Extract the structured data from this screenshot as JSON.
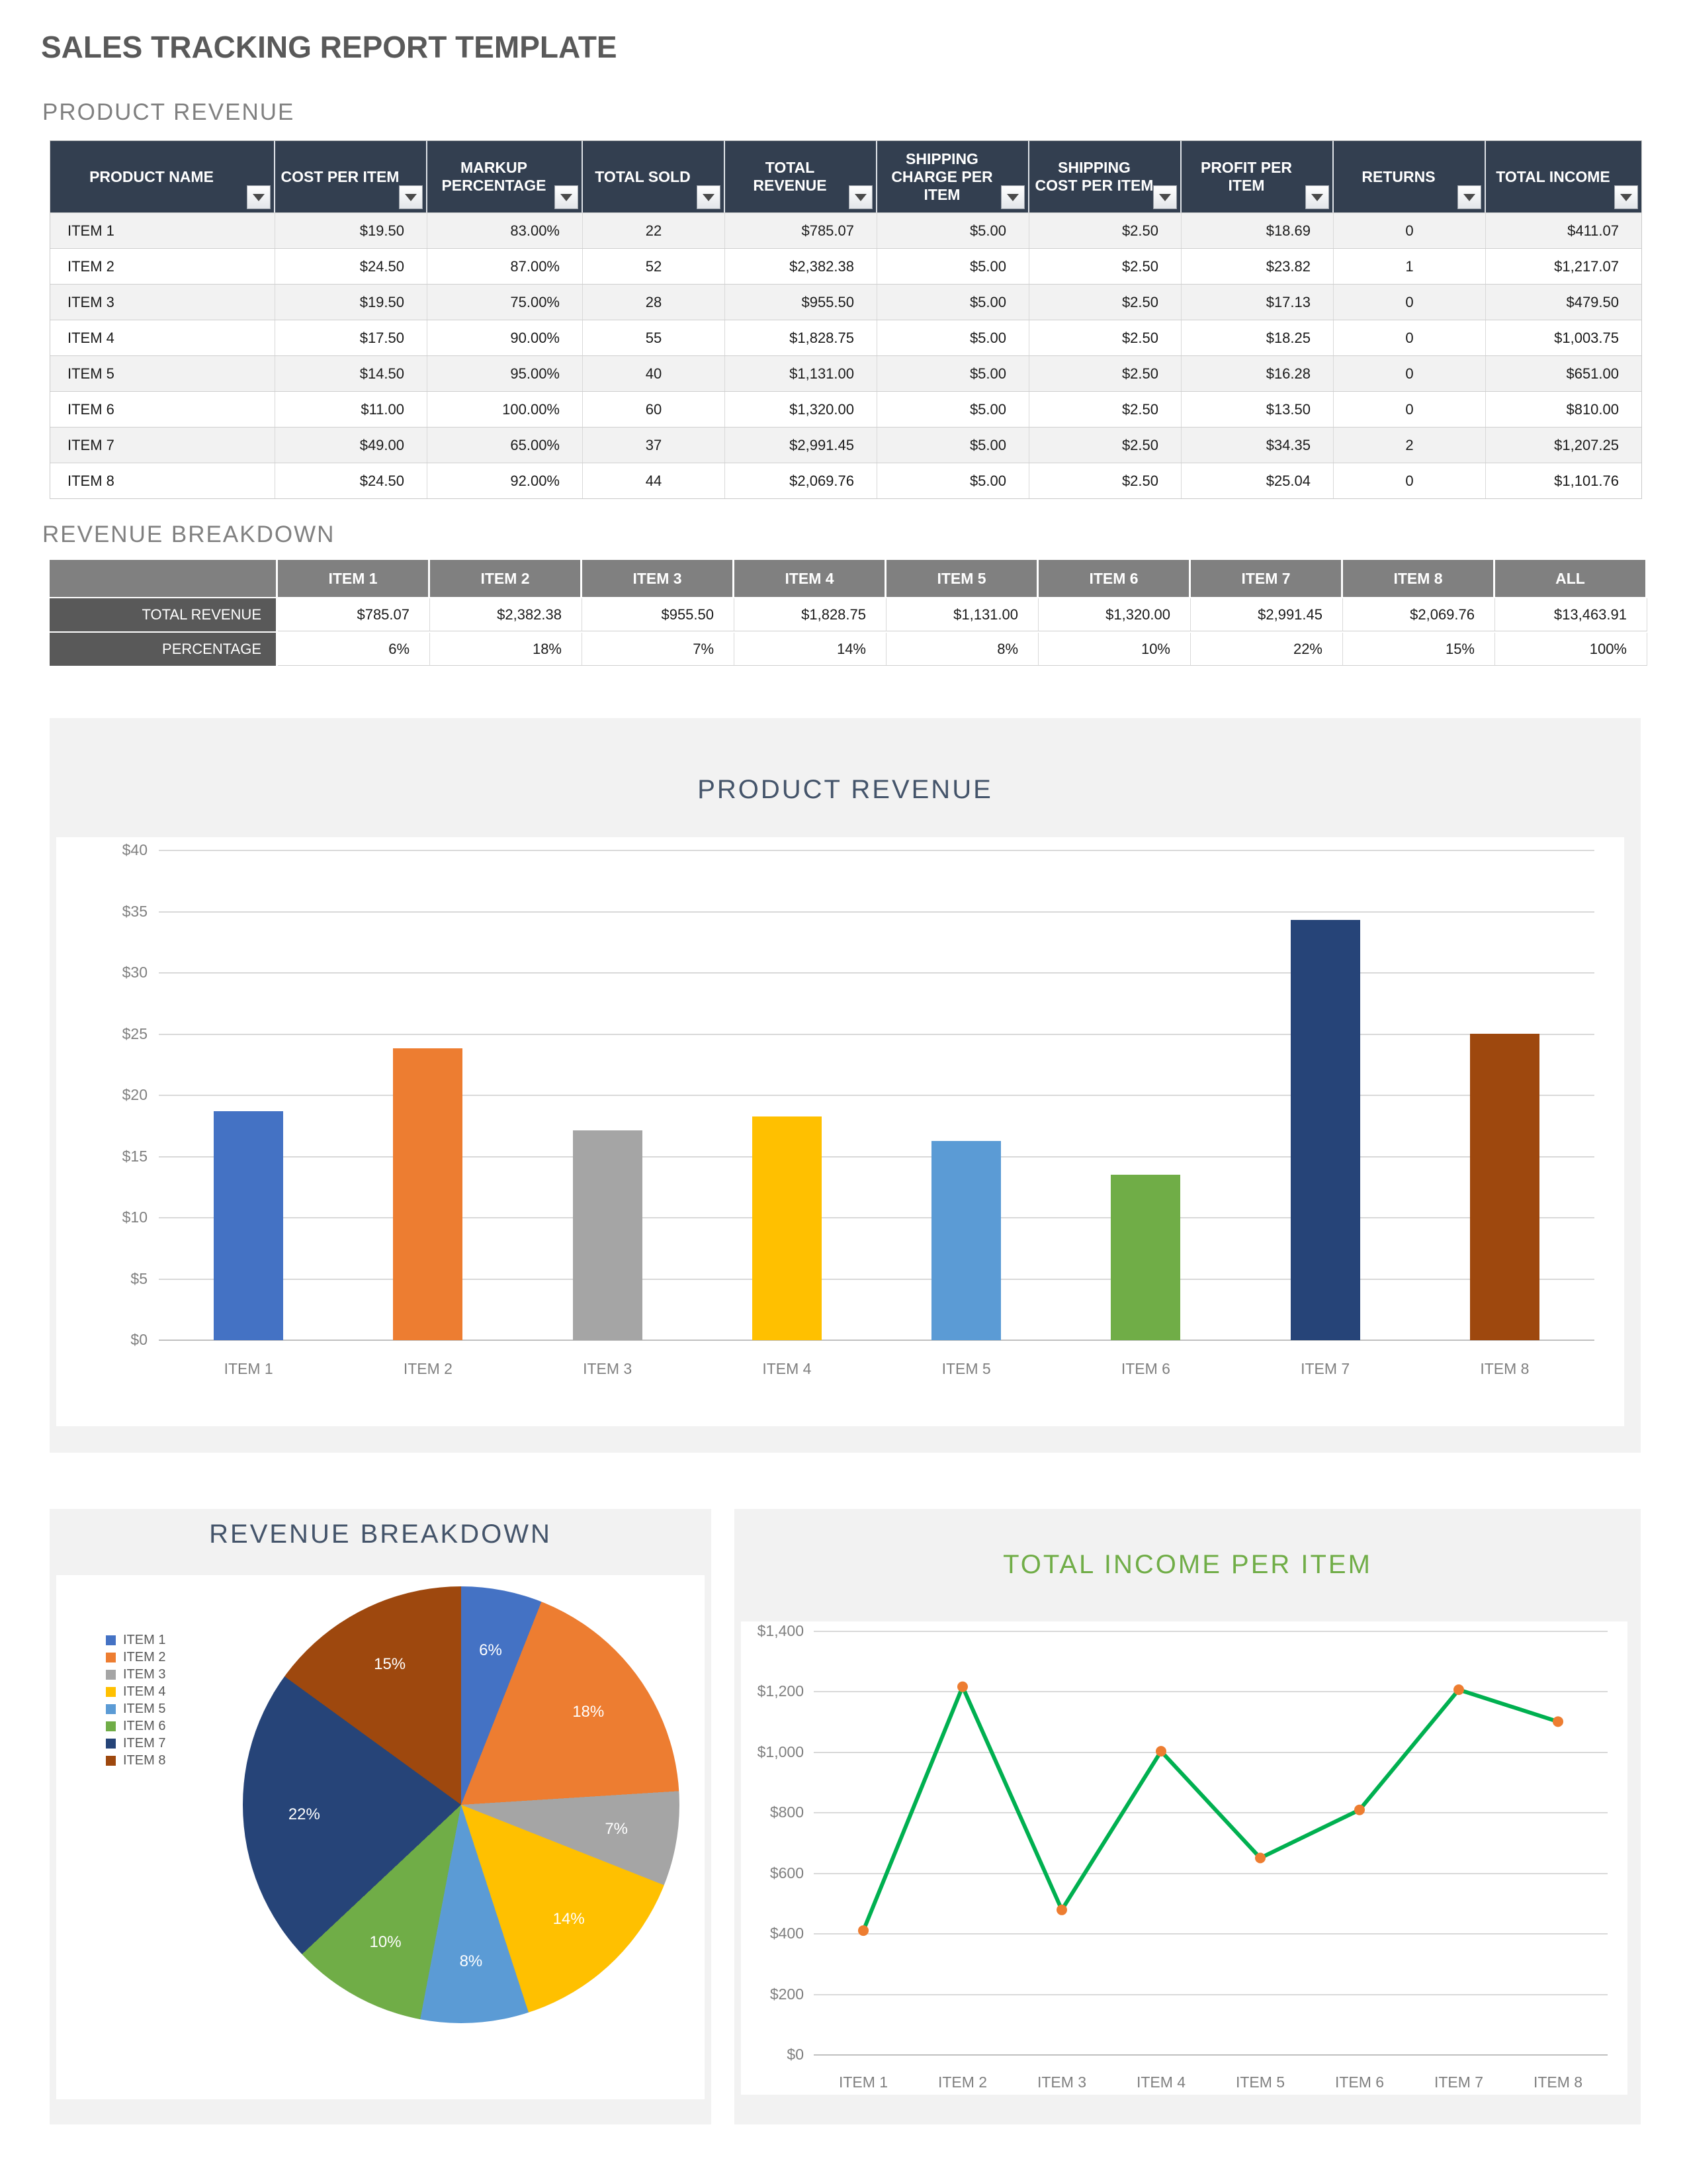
{
  "page": {
    "title": "SALES TRACKING REPORT TEMPLATE"
  },
  "sections": {
    "product_revenue_label": "PRODUCT REVENUE",
    "revenue_breakdown_label": "REVENUE BREAKDOWN"
  },
  "product_table": {
    "headers": [
      "PRODUCT NAME",
      "COST PER ITEM",
      "MARKUP PERCENTAGE",
      "TOTAL SOLD",
      "TOTAL REVENUE",
      "SHIPPING CHARGE PER ITEM",
      "SHIPPING COST PER ITEM",
      "PROFIT PER ITEM",
      "RETURNS",
      "TOTAL INCOME"
    ],
    "rows": [
      {
        "name": "ITEM 1",
        "cost": "$19.50",
        "markup": "83.00%",
        "sold": "22",
        "revenue": "$785.07",
        "ship_charge": "$5.00",
        "ship_cost": "$2.50",
        "profit": "$18.69",
        "returns": "0",
        "income": "$411.07"
      },
      {
        "name": "ITEM 2",
        "cost": "$24.50",
        "markup": "87.00%",
        "sold": "52",
        "revenue": "$2,382.38",
        "ship_charge": "$5.00",
        "ship_cost": "$2.50",
        "profit": "$23.82",
        "returns": "1",
        "income": "$1,217.07"
      },
      {
        "name": "ITEM 3",
        "cost": "$19.50",
        "markup": "75.00%",
        "sold": "28",
        "revenue": "$955.50",
        "ship_charge": "$5.00",
        "ship_cost": "$2.50",
        "profit": "$17.13",
        "returns": "0",
        "income": "$479.50"
      },
      {
        "name": "ITEM 4",
        "cost": "$17.50",
        "markup": "90.00%",
        "sold": "55",
        "revenue": "$1,828.75",
        "ship_charge": "$5.00",
        "ship_cost": "$2.50",
        "profit": "$18.25",
        "returns": "0",
        "income": "$1,003.75"
      },
      {
        "name": "ITEM 5",
        "cost": "$14.50",
        "markup": "95.00%",
        "sold": "40",
        "revenue": "$1,131.00",
        "ship_charge": "$5.00",
        "ship_cost": "$2.50",
        "profit": "$16.28",
        "returns": "0",
        "income": "$651.00"
      },
      {
        "name": "ITEM 6",
        "cost": "$11.00",
        "markup": "100.00%",
        "sold": "60",
        "revenue": "$1,320.00",
        "ship_charge": "$5.00",
        "ship_cost": "$2.50",
        "profit": "$13.50",
        "returns": "0",
        "income": "$810.00"
      },
      {
        "name": "ITEM 7",
        "cost": "$49.00",
        "markup": "65.00%",
        "sold": "37",
        "revenue": "$2,991.45",
        "ship_charge": "$5.00",
        "ship_cost": "$2.50",
        "profit": "$34.35",
        "returns": "2",
        "income": "$1,207.25"
      },
      {
        "name": "ITEM 8",
        "cost": "$24.50",
        "markup": "92.00%",
        "sold": "44",
        "revenue": "$2,069.76",
        "ship_charge": "$5.00",
        "ship_cost": "$2.50",
        "profit": "$25.04",
        "returns": "0",
        "income": "$1,101.76"
      }
    ]
  },
  "breakdown_table": {
    "columns": [
      "ITEM 1",
      "ITEM 2",
      "ITEM 3",
      "ITEM 4",
      "ITEM 5",
      "ITEM 6",
      "ITEM 7",
      "ITEM 8",
      "ALL"
    ],
    "rows": [
      {
        "label": "TOTAL REVENUE",
        "values": [
          "$785.07",
          "$2,382.38",
          "$955.50",
          "$1,828.75",
          "$1,131.00",
          "$1,320.00",
          "$2,991.45",
          "$2,069.76",
          "$13,463.91"
        ]
      },
      {
        "label": "PERCENTAGE",
        "values": [
          "6%",
          "18%",
          "7%",
          "14%",
          "8%",
          "10%",
          "22%",
          "15%",
          "100%"
        ]
      }
    ]
  },
  "chart_data": [
    {
      "type": "bar",
      "title": "PRODUCT REVENUE",
      "categories": [
        "ITEM 1",
        "ITEM 2",
        "ITEM 3",
        "ITEM 4",
        "ITEM 5",
        "ITEM 6",
        "ITEM 7",
        "ITEM 8"
      ],
      "values": [
        18.69,
        23.82,
        17.13,
        18.25,
        16.28,
        13.5,
        34.35,
        25.04
      ],
      "ylabel": "",
      "xlabel": "",
      "ylim": [
        0,
        40
      ],
      "ytick_step": 5,
      "tick_format": "$",
      "grid": true,
      "legend_position": "none",
      "colors": [
        "#4472C4",
        "#ED7D31",
        "#A5A5A5",
        "#FFC000",
        "#5B9BD5",
        "#70AD47",
        "#264478",
        "#9E480E"
      ],
      "title_color": "#44546A"
    },
    {
      "type": "pie",
      "title": "REVENUE BREAKDOWN",
      "categories": [
        "ITEM 1",
        "ITEM 2",
        "ITEM 3",
        "ITEM 4",
        "ITEM 5",
        "ITEM 6",
        "ITEM 7",
        "ITEM 8"
      ],
      "values": [
        6,
        18,
        7,
        14,
        8,
        10,
        22,
        15
      ],
      "labels": [
        "6%",
        "18%",
        "7%",
        "14%",
        "8%",
        "10%",
        "22%",
        "15%"
      ],
      "legend_position": "left",
      "colors": [
        "#4472C4",
        "#ED7D31",
        "#A5A5A5",
        "#FFC000",
        "#5B9BD5",
        "#70AD47",
        "#264478",
        "#9E480E"
      ],
      "title_color": "#44546A"
    },
    {
      "type": "line",
      "title": "TOTAL INCOME PER ITEM",
      "categories": [
        "ITEM 1",
        "ITEM 2",
        "ITEM 3",
        "ITEM 4",
        "ITEM 5",
        "ITEM 6",
        "ITEM 7",
        "ITEM 8"
      ],
      "values": [
        411.07,
        1217.07,
        479.5,
        1003.75,
        651.0,
        810.0,
        1207.25,
        1101.76
      ],
      "ylabel": "",
      "xlabel": "",
      "ylim": [
        0,
        1400
      ],
      "ytick_step": 200,
      "tick_format": "$",
      "grid": true,
      "legend_position": "none",
      "line_color": "#00B050",
      "marker_color": "#ED7D31",
      "title_color": "#70AD47"
    }
  ],
  "colors": {
    "table_header_bg": "#333F50",
    "table_header_text": "#FFFFFF",
    "row_alt_bg": "#F2F2F2",
    "breakdown_header_bg": "#808080",
    "breakdown_label_bg": "#595959",
    "panel_bg": "#F2F2F2",
    "gridline": "#D9D9D9",
    "axis_label_text": "#7F7F7F",
    "main_title_text": "#595959",
    "section_heading_text": "#808080"
  }
}
